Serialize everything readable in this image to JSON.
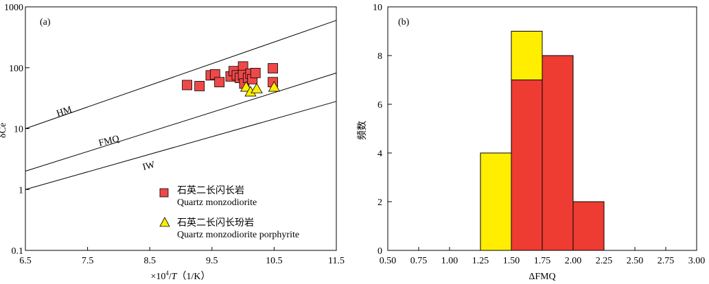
{
  "chart_data": [
    {
      "type": "scatter",
      "panel_label": "(a)",
      "xlabel": "×10⁴/T（1/K）",
      "xlabel_parts": [
        "×10",
        "4",
        "/",
        "T",
        "（1/K）"
      ],
      "ylabel": "δCe",
      "xlim": [
        6.5,
        11.5
      ],
      "ylim": [
        0.1,
        1000
      ],
      "yscale": "log",
      "x_ticks": [
        "6.5",
        "7.5",
        "8.5",
        "9.5",
        "10.5",
        "11.5"
      ],
      "y_ticks": [
        "0.1",
        "1",
        "10",
        "100",
        "1000"
      ],
      "lines": [
        {
          "name": "HM",
          "x": [
            6.5,
            11.5
          ],
          "y": [
            10,
            600
          ]
        },
        {
          "name": "FMQ",
          "x": [
            6.5,
            11.5
          ],
          "y": [
            2,
            82
          ]
        },
        {
          "name": "IW",
          "x": [
            6.5,
            11.5
          ],
          "y": [
            1,
            28
          ]
        }
      ],
      "series": [
        {
          "name_cn": "石英二长闪长岩",
          "name_en": "Quartz monzodiorite",
          "marker": "square",
          "color": "#ee4848",
          "points": [
            [
              9.1,
              52
            ],
            [
              9.3,
              50
            ],
            [
              9.48,
              75
            ],
            [
              9.55,
              78
            ],
            [
              9.62,
              58
            ],
            [
              9.8,
              72
            ],
            [
              9.85,
              88
            ],
            [
              9.9,
              75
            ],
            [
              9.95,
              68
            ],
            [
              10.0,
              105
            ],
            [
              10.0,
              76
            ],
            [
              10.02,
              55
            ],
            [
              10.08,
              68
            ],
            [
              10.12,
              80
            ],
            [
              10.15,
              65
            ],
            [
              10.2,
              82
            ],
            [
              10.48,
              98
            ],
            [
              10.48,
              58
            ]
          ]
        },
        {
          "name_cn": "石英二长闪长玢岩",
          "name_en": "Quartz monzodiorite porphyrite",
          "marker": "triangle",
          "color": "#ffee00",
          "points": [
            [
              10.05,
              48
            ],
            [
              10.12,
              40
            ],
            [
              10.22,
              45
            ],
            [
              10.5,
              48
            ]
          ]
        }
      ]
    },
    {
      "type": "bar",
      "stacked": true,
      "panel_label": "(b)",
      "xlabel": "ΔFMQ",
      "ylabel": "频数",
      "xlim": [
        0.5,
        3.0
      ],
      "ylim": [
        0,
        10
      ],
      "x_ticks": [
        "0.50",
        "0.75",
        "1.00",
        "1.25",
        "1.50",
        "1.75",
        "2.00",
        "2.25",
        "2.50",
        "2.75",
        "3.00"
      ],
      "y_ticks": [
        "0",
        "2",
        "4",
        "6",
        "8",
        "10"
      ],
      "bins": [
        {
          "from": 1.25,
          "to": 1.5,
          "red": 0,
          "yellow": 4
        },
        {
          "from": 1.5,
          "to": 1.75,
          "red": 7,
          "yellow": 2
        },
        {
          "from": 1.75,
          "to": 2.0,
          "red": 8,
          "yellow": 0
        },
        {
          "from": 2.0,
          "to": 2.25,
          "red": 2,
          "yellow": 0
        }
      ],
      "colors": {
        "red": "#ee3c32",
        "yellow": "#ffee00"
      }
    }
  ]
}
